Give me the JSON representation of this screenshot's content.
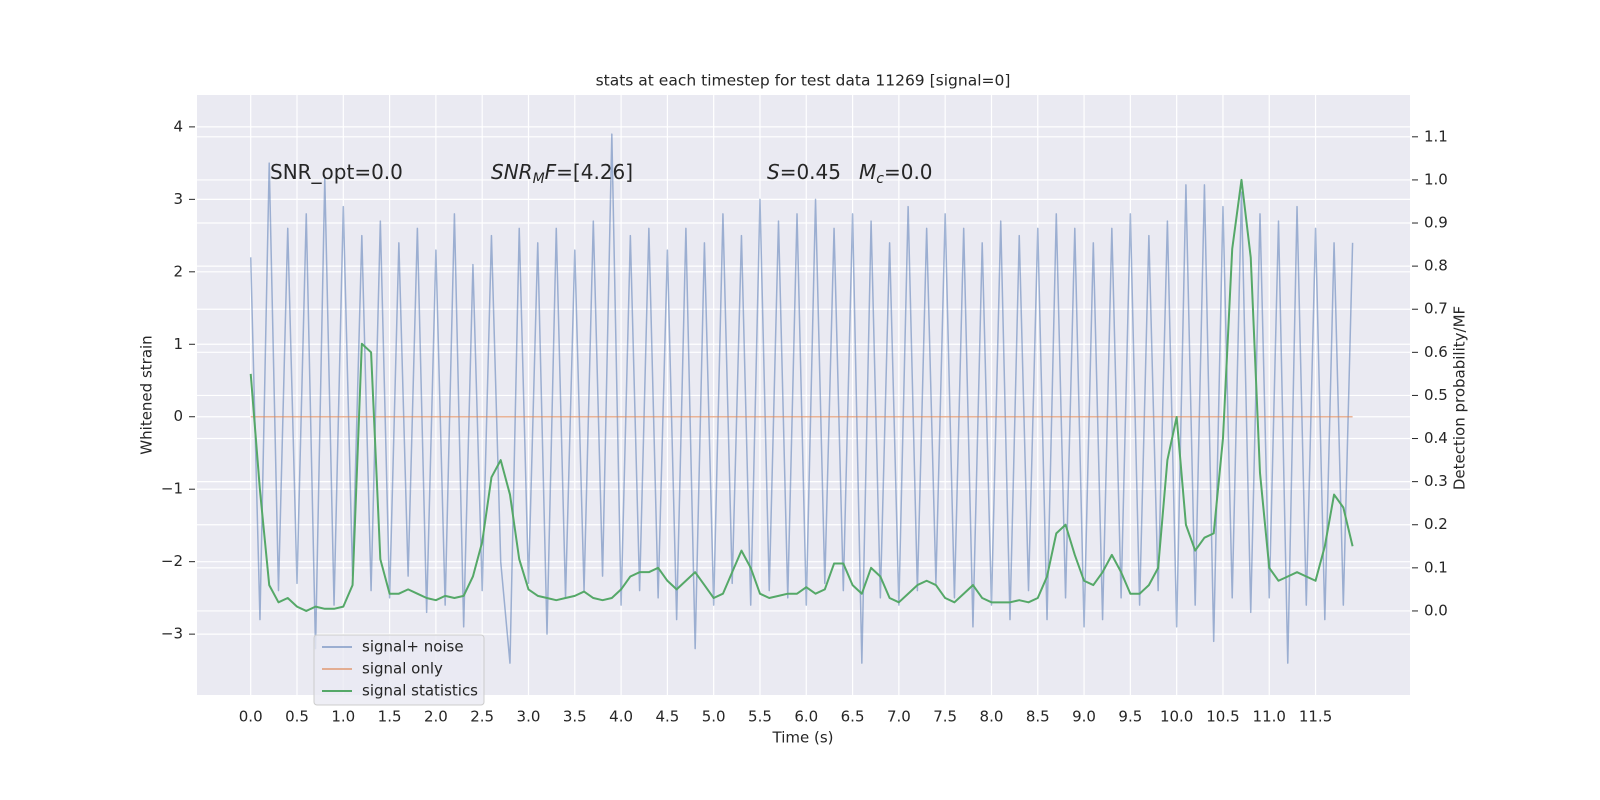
{
  "chart_data": {
    "type": "line",
    "title": "stats at each timestep for test data 11269 [signal=0]",
    "x_label": "Time (s)",
    "y_label": "Whitened strain",
    "y2_label": "Detection probability/MF",
    "xlim": [
      -0.58,
      12.52
    ],
    "ylim": [
      -3.84,
      4.44
    ],
    "y2lim": [
      -0.195,
      1.197
    ],
    "xticks": [
      {
        "value": 0,
        "label": "0.0"
      },
      0.5,
      {
        "value": 1,
        "label": "1.0"
      },
      1.5,
      {
        "value": 2,
        "label": "2.0"
      },
      2.5,
      {
        "value": 3,
        "label": "3.0"
      },
      3.5,
      {
        "value": 4,
        "label": "4.0"
      },
      4.5,
      {
        "value": 5,
        "label": "5.0"
      },
      5.5,
      {
        "value": 6,
        "label": "6.0"
      },
      6.5,
      {
        "value": 7,
        "label": "7.0"
      },
      7.5,
      {
        "value": 8,
        "label": "8.0"
      },
      8.5,
      {
        "value": 9,
        "label": "9.0"
      },
      9.5,
      {
        "value": 10,
        "label": "10.0"
      },
      10.5,
      {
        "value": 11,
        "label": "11.0"
      },
      11.5
    ],
    "yticks": [
      {
        "value": -3,
        "label": "−3"
      },
      {
        "value": -2,
        "label": "−2"
      },
      {
        "value": -1,
        "label": "−1"
      },
      0,
      1,
      2,
      3,
      4
    ],
    "y2ticks": [
      {
        "value": 0,
        "label": "0.0"
      },
      0.1,
      0.2,
      0.3,
      0.4,
      0.5,
      0.6,
      0.7,
      0.8,
      0.9,
      {
        "value": 1,
        "label": "1.0"
      },
      1.1
    ],
    "grid": true,
    "legend_position": "lower left",
    "annotations": [
      [
        {
          "text": "SNR_opt=0.0"
        }
      ],
      [
        {
          "text": "SNR",
          "style": "italic"
        },
        {
          "text": "M",
          "style": "italic-sub"
        },
        {
          "text": "F",
          "style": "italic"
        },
        {
          "text": "=[4.26]"
        }
      ],
      [
        {
          "text": "S",
          "style": "italic"
        },
        {
          "text": "=0.45"
        }
      ],
      [
        {
          "text": "M",
          "style": "italic"
        },
        {
          "text": "c",
          "style": "italic-sub"
        },
        {
          "text": "=0.0"
        }
      ]
    ],
    "x": [
      0,
      0.1,
      0.2,
      0.3,
      0.4,
      0.5,
      0.6,
      0.7,
      0.8,
      0.9,
      1,
      1.1,
      1.2,
      1.3,
      1.4,
      1.5,
      1.6,
      1.7,
      1.8,
      1.9,
      2,
      2.1,
      2.2,
      2.3,
      2.4,
      2.5,
      2.6,
      2.7,
      2.8,
      2.9,
      3,
      3.1,
      3.2,
      3.3,
      3.4,
      3.5,
      3.6,
      3.7,
      3.8,
      3.9,
      4,
      4.1,
      4.2,
      4.3,
      4.4,
      4.5,
      4.6,
      4.7,
      4.8,
      4.9,
      5,
      5.1,
      5.2,
      5.3,
      5.4,
      5.5,
      5.6,
      5.7,
      5.8,
      5.9,
      6,
      6.1,
      6.2,
      6.3,
      6.4,
      6.5,
      6.6,
      6.7,
      6.8,
      6.9,
      7,
      7.1,
      7.2,
      7.3,
      7.4,
      7.5,
      7.6,
      7.7,
      7.8,
      7.9,
      8,
      8.1,
      8.2,
      8.3,
      8.4,
      8.5,
      8.6,
      8.7,
      8.8,
      8.9,
      9,
      9.1,
      9.2,
      9.3,
      9.4,
      9.5,
      9.6,
      9.7,
      9.8,
      9.9,
      10,
      10.1,
      10.2,
      10.3,
      10.4,
      10.5,
      10.6,
      10.7,
      10.8,
      10.9,
      11,
      11.1,
      11.2,
      11.3,
      11.4,
      11.5,
      11.6,
      11.7,
      11.8,
      11.9
    ],
    "series": [
      {
        "name": "signal+ noise",
        "color": "#4c72b0",
        "opacity": 0.5,
        "axis": "y",
        "values": [
          2.2,
          -2.8,
          3.5,
          -2.4,
          2.6,
          -2.3,
          2.8,
          -3.2,
          3.3,
          -2.6,
          2.9,
          -2.2,
          2.5,
          -2.4,
          2.7,
          -2.5,
          2.4,
          -2.2,
          2.6,
          -2.7,
          2.3,
          -2.6,
          2.8,
          -2.9,
          2.1,
          -2.4,
          2.5,
          -2.0,
          -3.4,
          2.6,
          -2.3,
          2.4,
          -3.0,
          2.6,
          -2.5,
          2.3,
          -2.4,
          2.7,
          -2.2,
          3.9,
          -2.6,
          2.5,
          -2.4,
          2.6,
          -2.5,
          2.3,
          -2.8,
          2.6,
          -3.2,
          2.4,
          -2.6,
          2.8,
          -2.3,
          2.5,
          -2.6,
          3.0,
          -2.4,
          2.7,
          -2.5,
          2.8,
          -2.6,
          3.0,
          -2.3,
          2.6,
          -2.4,
          2.8,
          -3.4,
          2.7,
          -2.5,
          2.4,
          -2.6,
          2.9,
          -2.4,
          2.6,
          -2.3,
          2.8,
          -2.5,
          2.6,
          -2.9,
          2.4,
          -2.6,
          2.7,
          -2.8,
          2.5,
          -2.4,
          2.6,
          -2.8,
          2.8,
          -2.5,
          2.6,
          -2.9,
          2.4,
          -2.8,
          2.6,
          -2.5,
          2.8,
          -2.6,
          2.5,
          -2.4,
          2.7,
          -2.9,
          3.2,
          -2.6,
          3.2,
          -3.1,
          2.9,
          -2.5,
          3.1,
          -2.7,
          2.8,
          -2.5,
          2.7,
          -3.4,
          2.9,
          -2.6,
          2.6,
          -2.8,
          2.4,
          -2.6,
          2.4
        ]
      },
      {
        "name": "signal only",
        "color": "#dd8452",
        "opacity": 0.6,
        "axis": "y",
        "values": [
          0,
          0,
          0,
          0,
          0,
          0,
          0,
          0,
          0,
          0,
          0,
          0,
          0,
          0,
          0,
          0,
          0,
          0,
          0,
          0,
          0,
          0,
          0,
          0,
          0,
          0,
          0,
          0,
          0,
          0,
          0,
          0,
          0,
          0,
          0,
          0,
          0,
          0,
          0,
          0,
          0,
          0,
          0,
          0,
          0,
          0,
          0,
          0,
          0,
          0,
          0,
          0,
          0,
          0,
          0,
          0,
          0,
          0,
          0,
          0,
          0,
          0,
          0,
          0,
          0,
          0,
          0,
          0,
          0,
          0,
          0,
          0,
          0,
          0,
          0,
          0,
          0,
          0,
          0,
          0,
          0,
          0,
          0,
          0,
          0,
          0,
          0,
          0,
          0,
          0,
          0,
          0,
          0,
          0,
          0,
          0,
          0,
          0,
          0,
          0,
          0,
          0,
          0,
          0,
          0,
          0,
          0,
          0,
          0,
          0,
          0,
          0,
          0,
          0,
          0,
          0,
          0,
          0,
          0,
          0
        ]
      },
      {
        "name": "signal statistics",
        "color": "#55a868",
        "opacity": 1,
        "axis": "y2",
        "values": [
          0.55,
          0.28,
          0.06,
          0.02,
          0.03,
          0.01,
          0.0,
          0.01,
          0.005,
          0.005,
          0.01,
          0.06,
          0.62,
          0.6,
          0.12,
          0.04,
          0.04,
          0.05,
          0.04,
          0.03,
          0.025,
          0.035,
          0.03,
          0.035,
          0.08,
          0.16,
          0.31,
          0.35,
          0.27,
          0.12,
          0.05,
          0.035,
          0.03,
          0.025,
          0.03,
          0.035,
          0.045,
          0.03,
          0.025,
          0.03,
          0.05,
          0.08,
          0.09,
          0.09,
          0.1,
          0.07,
          0.05,
          0.07,
          0.09,
          0.06,
          0.03,
          0.04,
          0.09,
          0.14,
          0.1,
          0.04,
          0.03,
          0.035,
          0.04,
          0.04,
          0.055,
          0.04,
          0.05,
          0.11,
          0.11,
          0.06,
          0.04,
          0.1,
          0.08,
          0.03,
          0.02,
          0.04,
          0.06,
          0.07,
          0.06,
          0.03,
          0.02,
          0.04,
          0.06,
          0.03,
          0.02,
          0.02,
          0.02,
          0.025,
          0.02,
          0.03,
          0.08,
          0.18,
          0.2,
          0.13,
          0.07,
          0.06,
          0.09,
          0.13,
          0.09,
          0.04,
          0.04,
          0.06,
          0.1,
          0.35,
          0.45,
          0.2,
          0.14,
          0.17,
          0.18,
          0.4,
          0.84,
          1.0,
          0.82,
          0.32,
          0.1,
          0.07,
          0.08,
          0.09,
          0.08,
          0.07,
          0.15,
          0.27,
          0.24,
          0.15
        ]
      }
    ]
  }
}
